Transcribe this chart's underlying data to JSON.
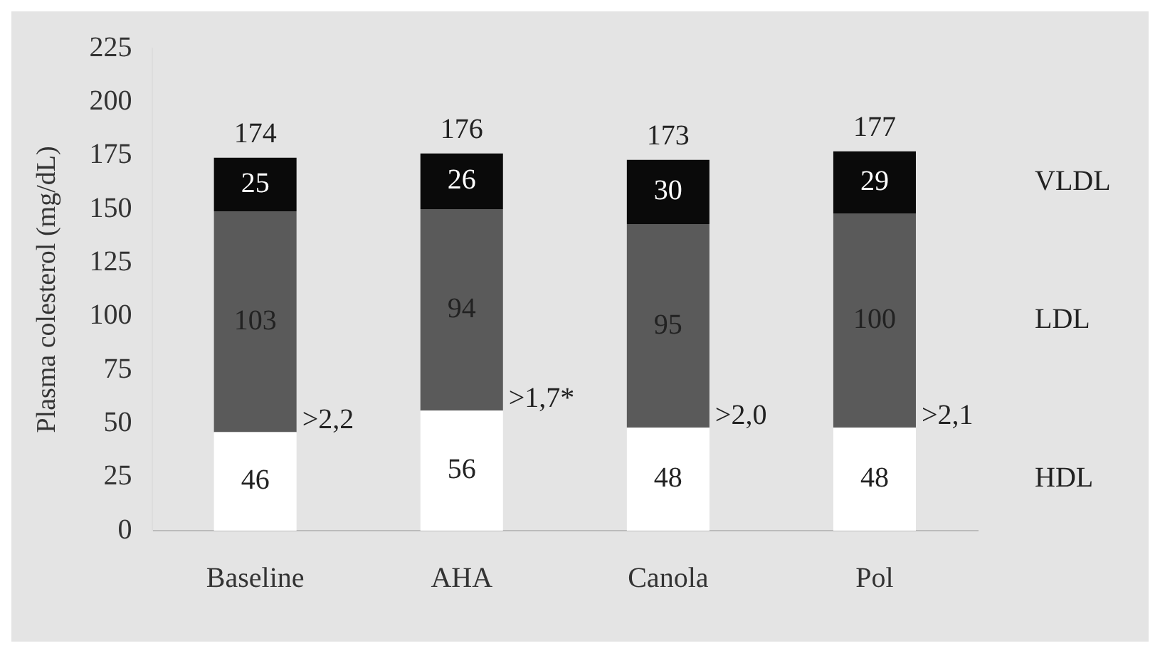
{
  "chart_data": {
    "type": "bar",
    "stacked": true,
    "ylabel": "Plasma colesterol (mg/dL)",
    "categories": [
      "Baseline",
      "AHA",
      "Canola",
      "Pol"
    ],
    "series": [
      {
        "name": "HDL",
        "color": "#ffffff",
        "values": [
          46,
          56,
          48,
          48
        ]
      },
      {
        "name": "LDL",
        "color": "#5a5a5a",
        "values": [
          103,
          94,
          95,
          100
        ]
      },
      {
        "name": "VLDL",
        "color": "#0a0a0a",
        "values": [
          25,
          26,
          30,
          29
        ]
      }
    ],
    "totals": [
      "174",
      "176",
      "173",
      "177"
    ],
    "data_labels": true,
    "ylim": [
      0,
      225
    ],
    "yticks": [
      0,
      25,
      50,
      75,
      100,
      125,
      150,
      175,
      200,
      225
    ],
    "grid": false,
    "annotations": [
      {
        "text": ">2,2",
        "x": "Baseline",
        "y": 46
      },
      {
        "text": ">1,7*",
        "x": "AHA",
        "y": 56
      },
      {
        "text": ">2,0",
        "x": "Canola",
        "y": 48
      },
      {
        "text": ">2,1",
        "x": "Pol",
        "y": 48
      }
    ]
  }
}
